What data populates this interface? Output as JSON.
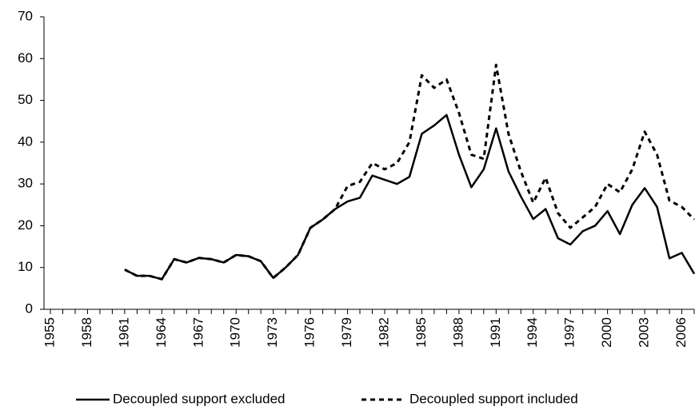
{
  "chart_data": {
    "type": "line",
    "categories": [
      "1955",
      null,
      null,
      "1958",
      null,
      null,
      "1961",
      null,
      null,
      "1964",
      null,
      null,
      "1967",
      null,
      null,
      "1970",
      null,
      null,
      "1973",
      null,
      null,
      "1976",
      null,
      null,
      "1979",
      null,
      null,
      "1982",
      null,
      null,
      "1985",
      null,
      null,
      "1988",
      null,
      null,
      "1991",
      null,
      null,
      "1994",
      null,
      null,
      "1997",
      null,
      null,
      "2000",
      null,
      null,
      "2003",
      null,
      null,
      "2006",
      null
    ],
    "series": [
      {
        "name": "Decoupled support excluded",
        "color": "#000000",
        "dash": false,
        "values": [
          null,
          null,
          null,
          null,
          null,
          null,
          9.5,
          8,
          8,
          7.2,
          12,
          11.2,
          12.3,
          12,
          11.2,
          13,
          12.7,
          11.5,
          7.5,
          10,
          13,
          19.5,
          21.5,
          24,
          25.8,
          26.7,
          32,
          31,
          30,
          31.7,
          42,
          44,
          46.5,
          37,
          29.2,
          33.5,
          43.3,
          33,
          27,
          21.6,
          24,
          17,
          15.5,
          18.7,
          20,
          23.5,
          18,
          25,
          29,
          24.5,
          12.2,
          13.5,
          8.5
        ]
      },
      {
        "name": "Decoupled support included",
        "color": "#000000",
        "dash": true,
        "values": [
          null,
          null,
          null,
          null,
          null,
          null,
          9.5,
          8,
          8,
          7.2,
          12,
          11.2,
          12.3,
          12,
          11.2,
          13,
          12.7,
          11.5,
          7.5,
          10,
          13,
          19.5,
          21.5,
          24,
          29.5,
          30.5,
          35,
          33.5,
          35,
          40,
          56,
          53,
          55,
          47,
          37,
          36,
          58.5,
          42,
          33,
          25.5,
          31.5,
          23,
          19.5,
          22,
          24.5,
          30,
          28,
          33.5,
          42.5,
          37,
          26,
          24.5,
          21.5
        ]
      }
    ],
    "ylim": [
      0,
      70
    ],
    "yticks": [
      0,
      10,
      20,
      30,
      40,
      50,
      60,
      70
    ],
    "grid": false,
    "legend": "bottom"
  }
}
